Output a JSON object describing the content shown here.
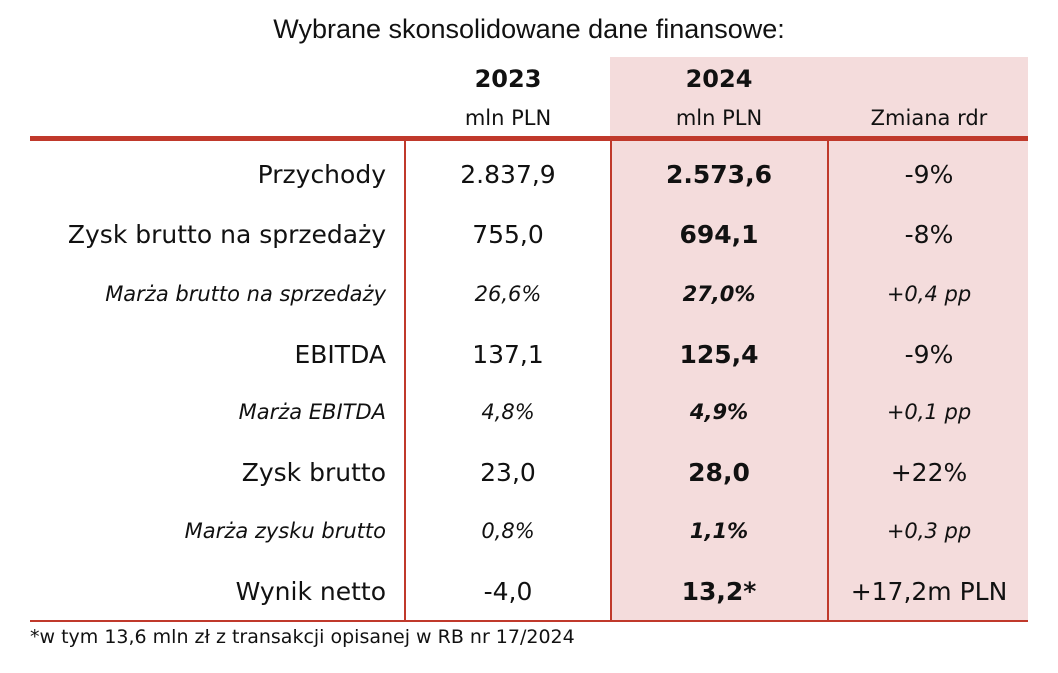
{
  "title": "Wybrane skonsolidowane dane finansowe:",
  "header": {
    "col_2023_year": "2023",
    "col_2023_unit": "mln PLN",
    "col_2024_year": "2024",
    "col_2024_unit": "mln PLN",
    "col_change": "Zmiana rdr"
  },
  "rows": [
    {
      "label": "Przychody",
      "v2023": "2.837,9",
      "v2024": "2.573,6",
      "change": "-9%"
    },
    {
      "label": "Zysk brutto na sprzedaży",
      "v2023": "755,0",
      "v2024": "694,1",
      "change": "-8%"
    },
    {
      "label": "Marża brutto na sprzedaży",
      "v2023": "26,6%",
      "v2024": "27,0%",
      "change": "+0,4 pp"
    },
    {
      "label": "EBITDA",
      "v2023": "137,1",
      "v2024": "125,4",
      "change": "-9%"
    },
    {
      "label": "Marża EBITDA",
      "v2023": "4,8%",
      "v2024": "4,9%",
      "change": "+0,1 pp"
    },
    {
      "label": "Zysk brutto",
      "v2023": "23,0",
      "v2024": "28,0",
      "change": "+22%"
    },
    {
      "label": "Marża zysku brutto",
      "v2023": "0,8%",
      "v2024": "1,1%",
      "change": "+0,3 pp"
    },
    {
      "label": "Wynik netto",
      "v2023": "-4,0",
      "v2024": "13,2*",
      "change": "+17,2m PLN"
    }
  ],
  "footnote": "*w tym 13,6 mln zł z transakcji opisanej w RB nr 17/2024",
  "colors": {
    "accent": "#c0392b",
    "highlight": "#f4dcdc"
  }
}
